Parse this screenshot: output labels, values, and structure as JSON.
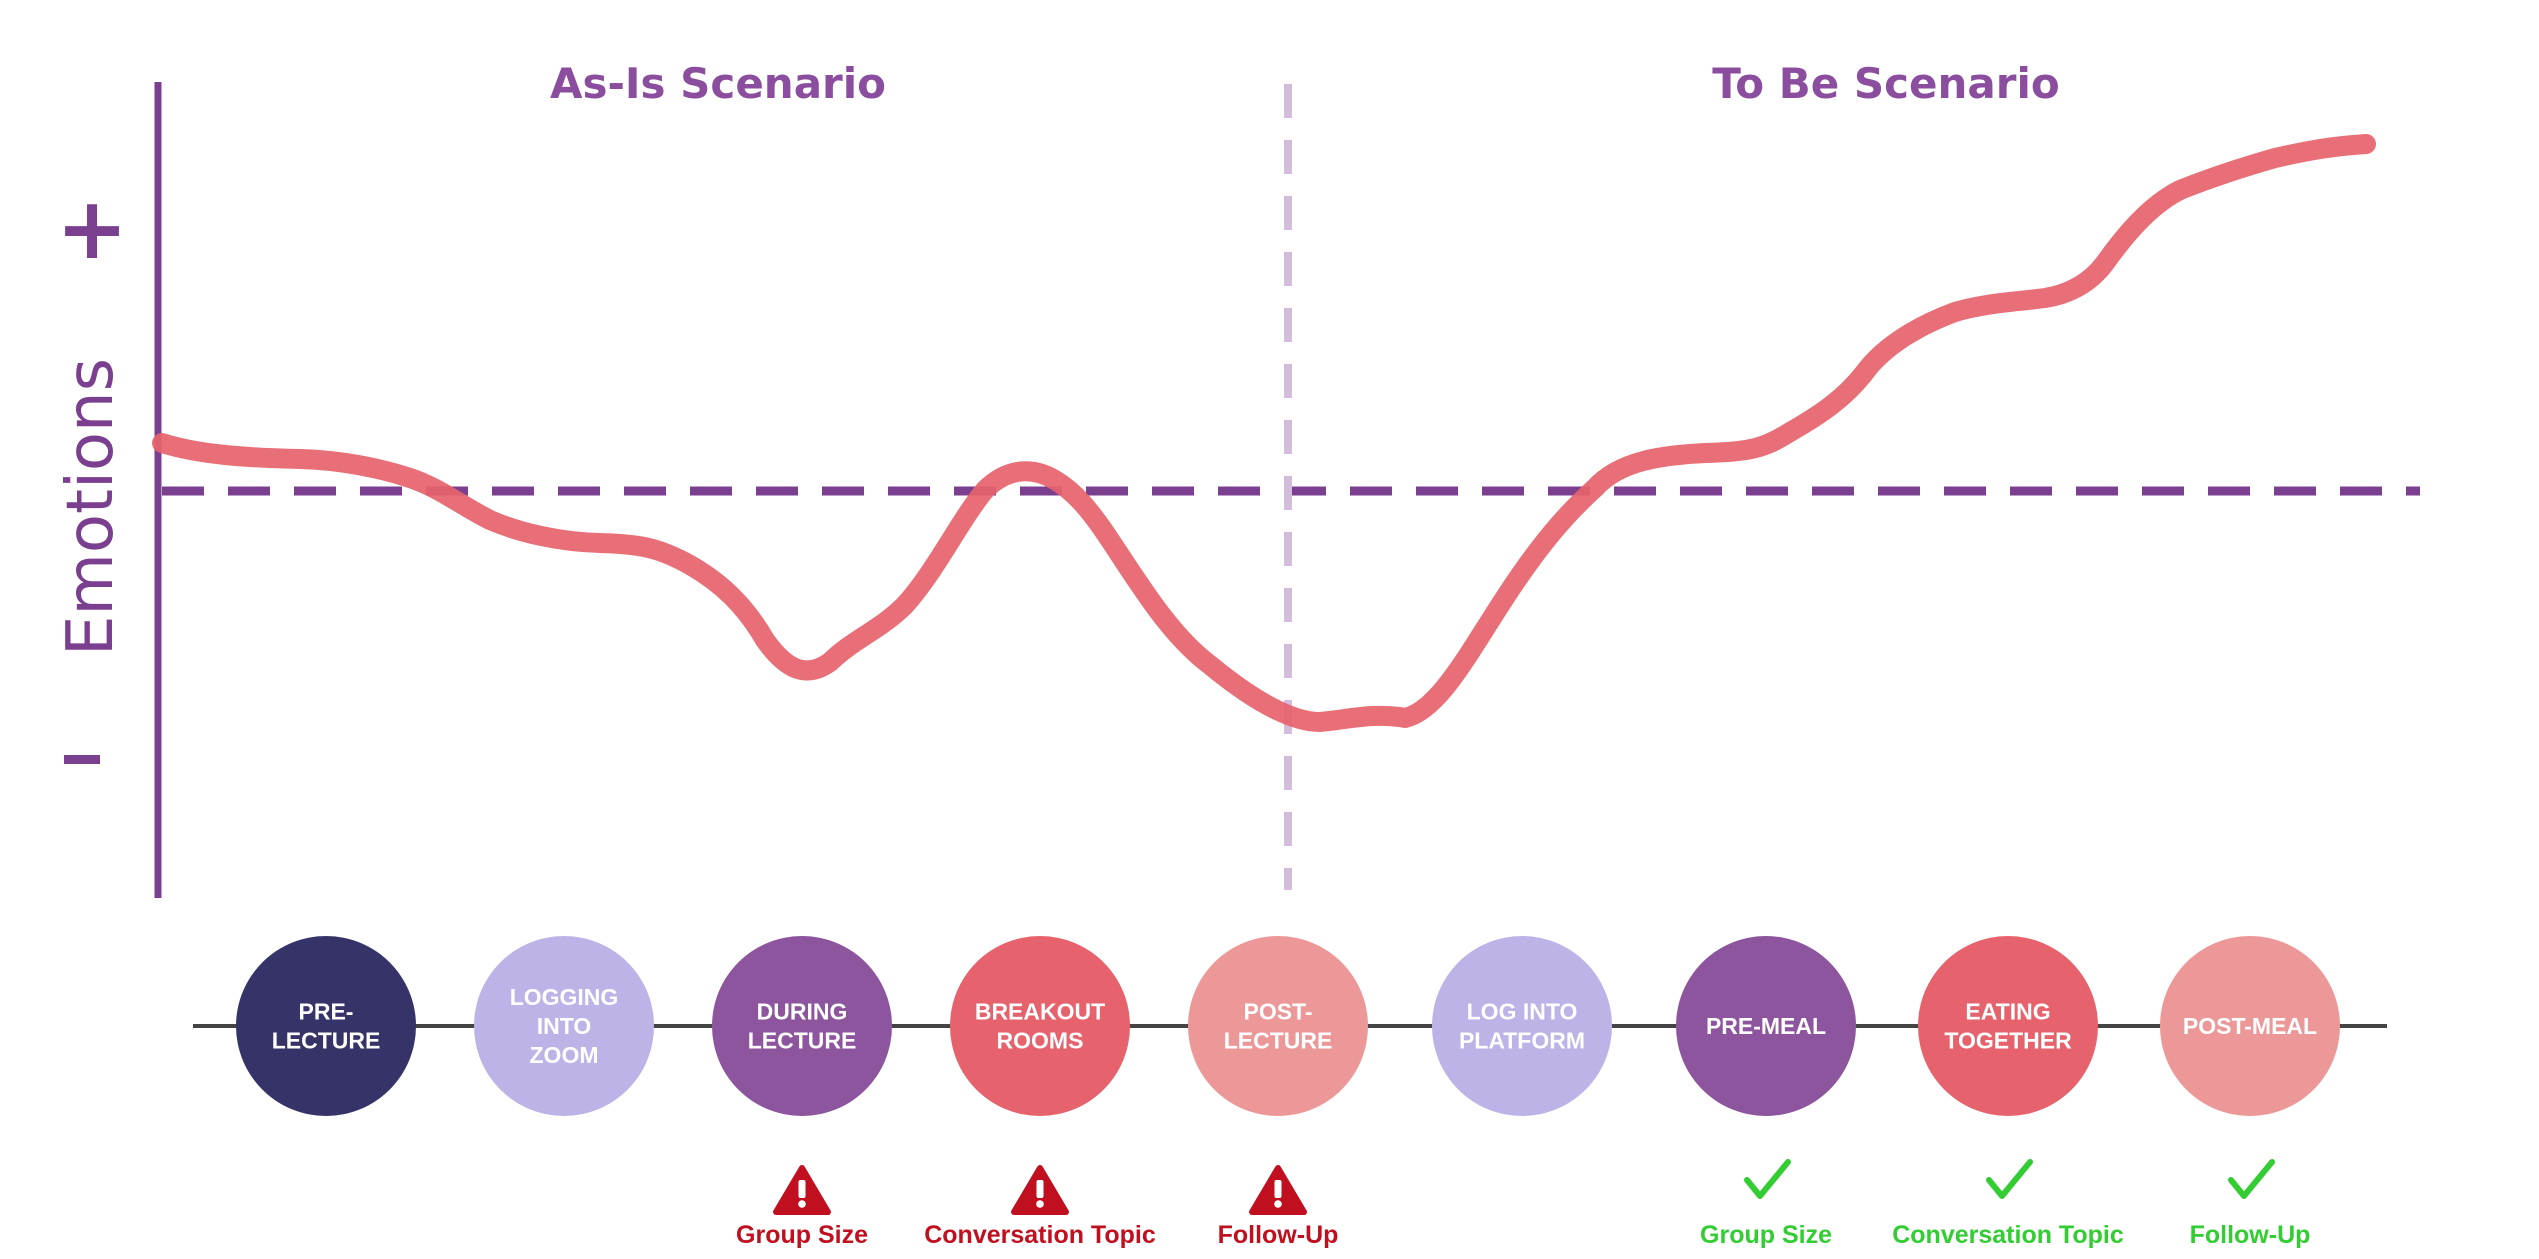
{
  "titles": {
    "as_is": "As-Is Scenario",
    "to_be": "To Be Scenario"
  },
  "axis": {
    "label": "Emotions",
    "positive": "+",
    "negative": "-"
  },
  "stages": [
    {
      "lines": [
        "PRE-",
        "LECTURE"
      ],
      "color": "#363369"
    },
    {
      "lines": [
        "LOGGING",
        "INTO",
        "ZOOM"
      ],
      "color": "#BDB3E6"
    },
    {
      "lines": [
        "DURING",
        "LECTURE"
      ],
      "color": "#8D559E"
    },
    {
      "lines": [
        "BREAKOUT",
        "ROOMS"
      ],
      "color": "#E6636D"
    },
    {
      "lines": [
        "POST-",
        "LECTURE"
      ],
      "color": "#EC9899"
    },
    {
      "lines": [
        "LOG INTO",
        "PLATFORM"
      ],
      "color": "#BDB3E6"
    },
    {
      "lines": [
        "PRE-MEAL"
      ],
      "color": "#8D559E"
    },
    {
      "lines": [
        "EATING",
        "TOGETHER"
      ],
      "color": "#E6636D"
    },
    {
      "lines": [
        "POST-MEAL"
      ],
      "color": "#EC9899"
    }
  ],
  "issues": [
    {
      "stage": 2,
      "label": "Group Size",
      "icon": "warning-icon",
      "color": "#C01020"
    },
    {
      "stage": 3,
      "label": "Conversation Topic",
      "icon": "warning-icon",
      "color": "#C01020"
    },
    {
      "stage": 4,
      "label": "Follow-Up",
      "icon": "warning-icon",
      "color": "#C01020"
    },
    {
      "stage": 6,
      "label": "Group Size",
      "icon": "checkmark-icon",
      "color": "#33CC33"
    },
    {
      "stage": 7,
      "label": "Conversation Topic",
      "icon": "checkmark-icon",
      "color": "#33CC33"
    },
    {
      "stage": 8,
      "label": "Follow-Up",
      "icon": "checkmark-icon",
      "color": "#33CC33"
    }
  ],
  "colors": {
    "axis": "#7A3F8E",
    "baseline": "#7A3F8E",
    "divider": "#D4BCDD",
    "emotion_curve": "#E6636D",
    "timeline": "#444444"
  }
}
